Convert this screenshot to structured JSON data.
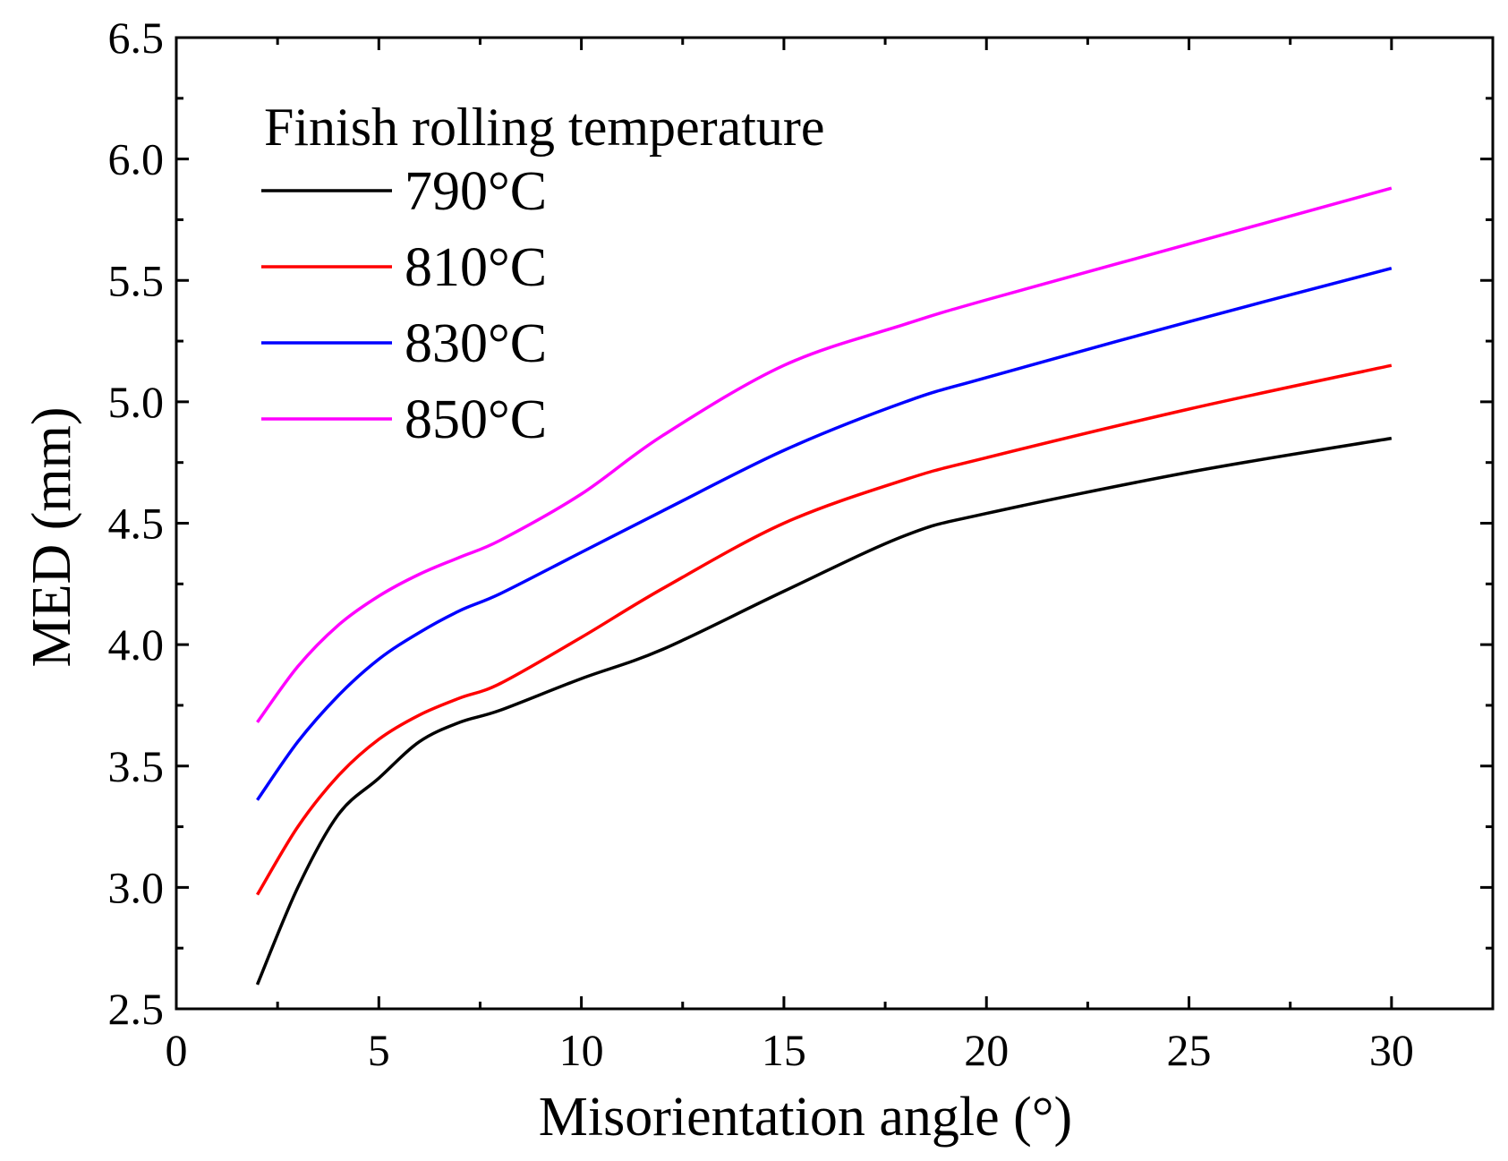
{
  "chart_data": {
    "type": "line",
    "title": "",
    "xlabel": "Misorientation angle (°)",
    "ylabel": "MED (mm)",
    "xlim": [
      0,
      32.5
    ],
    "ylim": [
      2.5,
      6.5
    ],
    "xticks": [
      0,
      5,
      10,
      15,
      20,
      25,
      30
    ],
    "xtick_labels": [
      "0",
      "5",
      "10",
      "15",
      "20",
      "25",
      "30"
    ],
    "yticks": [
      2.5,
      3.0,
      3.5,
      4.0,
      4.5,
      5.0,
      5.5,
      6.0,
      6.5
    ],
    "ytick_labels": [
      "2.5",
      "3.0",
      "3.5",
      "4.0",
      "4.5",
      "5.0",
      "5.5",
      "6.0",
      "6.5"
    ],
    "grid": false,
    "legend": {
      "title": "Finish rolling temperature",
      "position": "top-left"
    },
    "x": [
      2,
      3,
      4,
      5,
      6,
      7,
      8,
      10,
      12,
      15,
      18,
      20,
      25,
      30
    ],
    "series": [
      {
        "name": "790°C",
        "color": "#000000",
        "values": [
          2.6,
          3.0,
          3.3,
          3.45,
          3.6,
          3.68,
          3.73,
          3.86,
          3.98,
          4.22,
          4.45,
          4.54,
          4.71,
          4.85
        ]
      },
      {
        "name": "810°C",
        "color": "#ff0000",
        "values": [
          2.97,
          3.25,
          3.46,
          3.61,
          3.71,
          3.78,
          3.84,
          4.03,
          4.23,
          4.5,
          4.68,
          4.77,
          4.97,
          5.15
        ]
      },
      {
        "name": "830°C",
        "color": "#0000ff",
        "values": [
          3.36,
          3.6,
          3.79,
          3.94,
          4.05,
          4.14,
          4.21,
          4.38,
          4.55,
          4.8,
          5.0,
          5.1,
          5.33,
          5.55
        ]
      },
      {
        "name": "850°C",
        "color": "#ff00ff",
        "values": [
          3.68,
          3.91,
          4.08,
          4.2,
          4.29,
          4.36,
          4.43,
          4.62,
          4.86,
          5.15,
          5.32,
          5.42,
          5.65,
          5.88
        ]
      }
    ]
  }
}
